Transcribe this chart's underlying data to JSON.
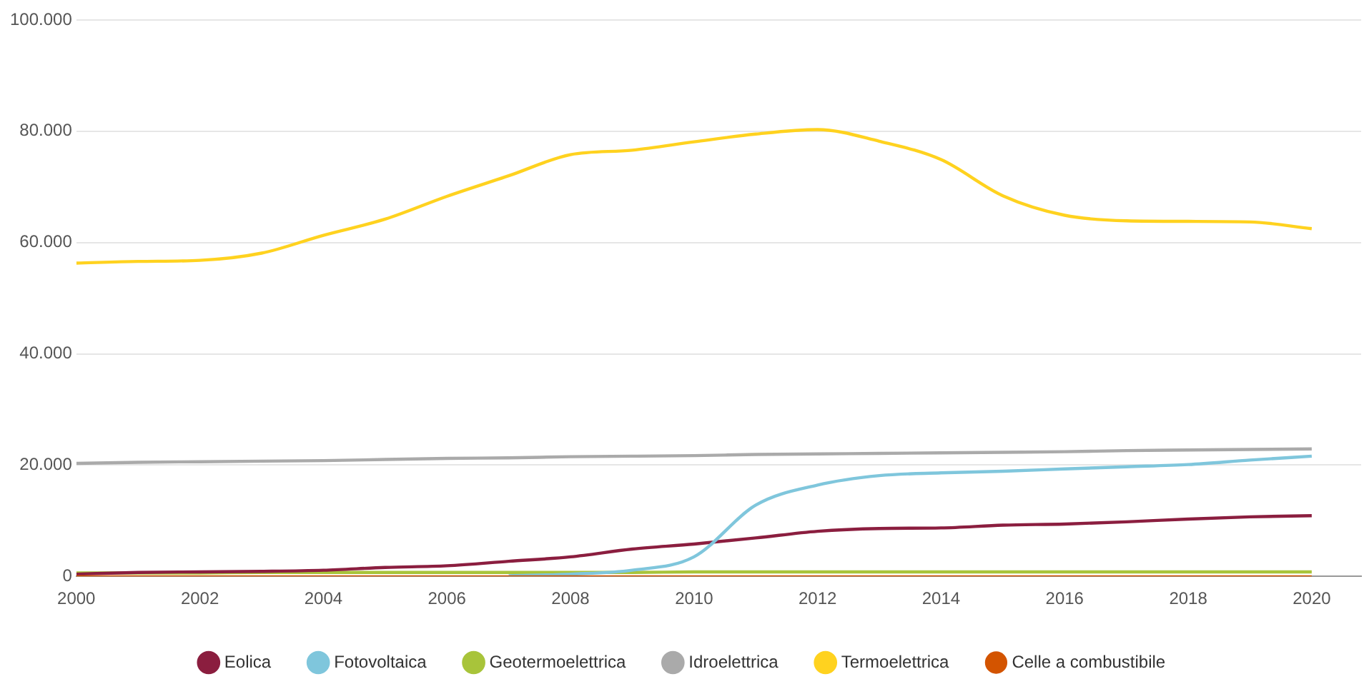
{
  "chart_data": {
    "type": "line",
    "x": [
      2000,
      2001,
      2002,
      2003,
      2004,
      2005,
      2006,
      2007,
      2008,
      2009,
      2010,
      2011,
      2012,
      2013,
      2014,
      2015,
      2016,
      2017,
      2018,
      2019,
      2020
    ],
    "series": [
      {
        "name": "Eolica",
        "color": "#8b1e3f",
        "values": [
          400,
          700,
          800,
          900,
          1100,
          1600,
          1900,
          2700,
          3500,
          4900,
          5800,
          6900,
          8100,
          8600,
          8700,
          9200,
          9400,
          9800,
          10300,
          10700,
          10900
        ]
      },
      {
        "name": "Fotovoltaica",
        "color": "#7fc6dc",
        "values": [
          null,
          null,
          null,
          null,
          null,
          null,
          null,
          100,
          400,
          1100,
          3500,
          12800,
          16400,
          18100,
          18600,
          18900,
          19300,
          19700,
          20100,
          20900,
          21600
        ]
      },
      {
        "name": "Geotermoelettrica",
        "color": "#a8c43a",
        "values": [
          600,
          600,
          600,
          700,
          700,
          700,
          700,
          700,
          700,
          700,
          800,
          800,
          800,
          800,
          800,
          800,
          800,
          800,
          800,
          800,
          800
        ]
      },
      {
        "name": "Idroelettrica",
        "color": "#aaaaaa",
        "values": [
          20300,
          20500,
          20600,
          20700,
          20800,
          21000,
          21200,
          21300,
          21500,
          21600,
          21700,
          21900,
          22000,
          22100,
          22200,
          22300,
          22400,
          22600,
          22700,
          22800,
          22900
        ]
      },
      {
        "name": "Termoelettrica",
        "color": "#ffd21f",
        "values": [
          56300,
          56600,
          56800,
          58100,
          61300,
          64200,
          68300,
          72000,
          75800,
          76600,
          78100,
          79500,
          80300,
          78200,
          74900,
          68400,
          64900,
          63900,
          63800,
          63700,
          62500
        ]
      },
      {
        "name": "Celle a combustibile",
        "color": "#d35400",
        "values": [
          0,
          0,
          0,
          0,
          0,
          0,
          0,
          0,
          0,
          0,
          0,
          0,
          0,
          0,
          0,
          0,
          0,
          0,
          0,
          0,
          0
        ]
      }
    ],
    "xlim": [
      2000,
      2020.8
    ],
    "xticks": [
      2000,
      2002,
      2004,
      2006,
      2008,
      2010,
      2012,
      2014,
      2016,
      2018,
      2020
    ],
    "ylim": [
      0,
      100000
    ],
    "yticks": [
      {
        "value": 0,
        "label": "0"
      },
      {
        "value": 20000,
        "label": "20.000"
      },
      {
        "value": 40000,
        "label": "40.000"
      },
      {
        "value": 60000,
        "label": "60.000"
      },
      {
        "value": 80000,
        "label": "80.000"
      },
      {
        "value": 100000,
        "label": "100.000"
      }
    ],
    "grid": "y",
    "legend": "bottom",
    "marker": "none",
    "line_style": "solid"
  }
}
